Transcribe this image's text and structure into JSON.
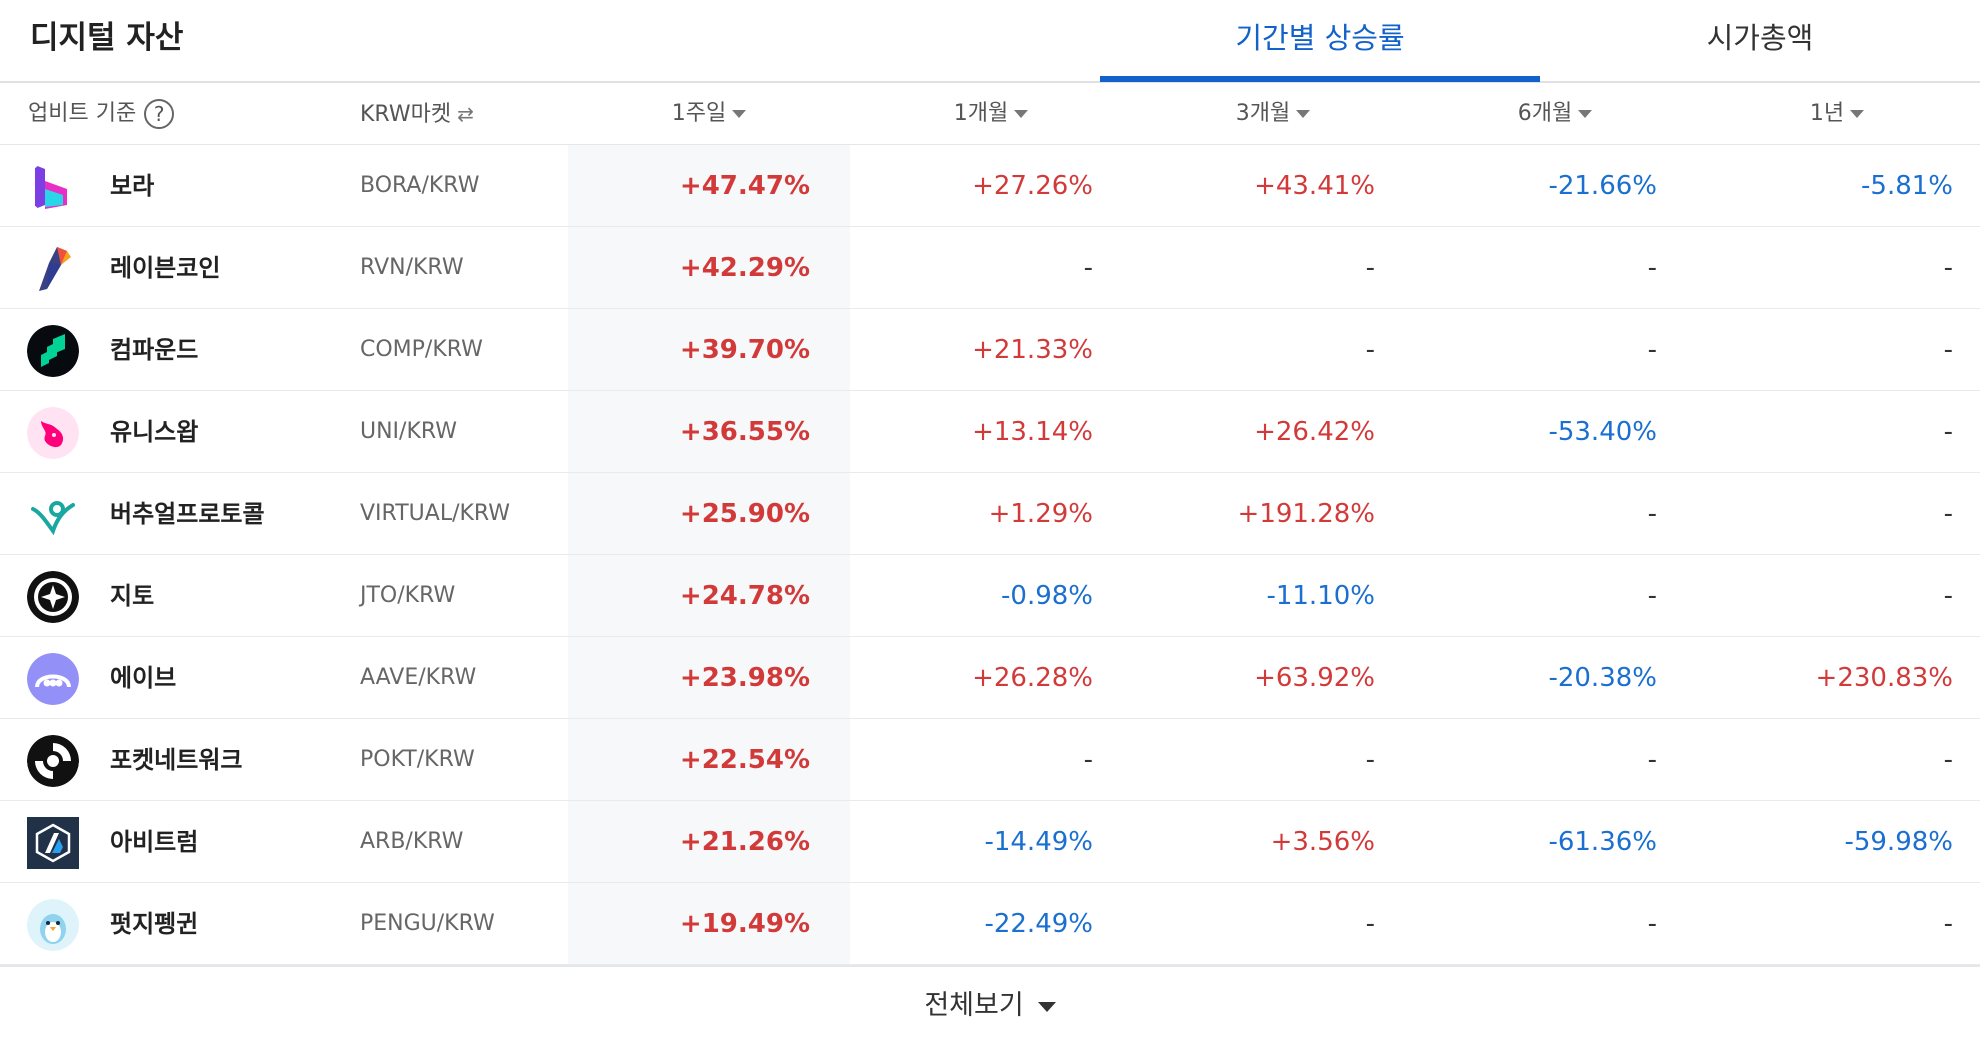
{
  "header": {
    "title": "디지털 자산",
    "tabs": [
      {
        "label": "기간별 상승률",
        "active": true
      },
      {
        "label": "시가총액",
        "active": false
      }
    ]
  },
  "columns": {
    "basis": "업비트 기준",
    "market": "KRW마켓",
    "periods": [
      "1주일",
      "1개월",
      "3개월",
      "6개월",
      "1년"
    ],
    "sorted_period": "1주일"
  },
  "colors": {
    "up": "#d23a3a",
    "down": "#1a6fd1",
    "accent": "#1262c9"
  },
  "rows": [
    {
      "name": "보라",
      "market": "BORA/KRW",
      "icon": "bora-logo-icon",
      "values": [
        "+47.47%",
        "+27.26%",
        "+43.41%",
        "-21.66%",
        "-5.81%"
      ]
    },
    {
      "name": "레이븐코인",
      "market": "RVN/KRW",
      "icon": "ravencoin-logo-icon",
      "values": [
        "+42.29%",
        "-",
        "-",
        "-",
        "-"
      ]
    },
    {
      "name": "컴파운드",
      "market": "COMP/KRW",
      "icon": "compound-logo-icon",
      "values": [
        "+39.70%",
        "+21.33%",
        "-",
        "-",
        "-"
      ]
    },
    {
      "name": "유니스왑",
      "market": "UNI/KRW",
      "icon": "uniswap-logo-icon",
      "values": [
        "+36.55%",
        "+13.14%",
        "+26.42%",
        "-53.40%",
        "-"
      ]
    },
    {
      "name": "버추얼프로토콜",
      "market": "VIRTUAL/KRW",
      "icon": "virtual-protocol-logo-icon",
      "values": [
        "+25.90%",
        "+1.29%",
        "+191.28%",
        "-",
        "-"
      ]
    },
    {
      "name": "지토",
      "market": "JTO/KRW",
      "icon": "jito-logo-icon",
      "values": [
        "+24.78%",
        "-0.98%",
        "-11.10%",
        "-",
        "-"
      ]
    },
    {
      "name": "에이브",
      "market": "AAVE/KRW",
      "icon": "aave-logo-icon",
      "values": [
        "+23.98%",
        "+26.28%",
        "+63.92%",
        "-20.38%",
        "+230.83%"
      ]
    },
    {
      "name": "포켓네트워크",
      "market": "POKT/KRW",
      "icon": "pocket-network-logo-icon",
      "values": [
        "+22.54%",
        "-",
        "-",
        "-",
        "-"
      ]
    },
    {
      "name": "아비트럼",
      "market": "ARB/KRW",
      "icon": "arbitrum-logo-icon",
      "values": [
        "+21.26%",
        "-14.49%",
        "+3.56%",
        "-61.36%",
        "-59.98%"
      ]
    },
    {
      "name": "펏지펭귄",
      "market": "PENGU/KRW",
      "icon": "pudgy-penguins-logo-icon",
      "values": [
        "+19.49%",
        "-22.49%",
        "-",
        "-",
        "-"
      ]
    }
  ],
  "footer": {
    "view_all": "전체보기"
  }
}
